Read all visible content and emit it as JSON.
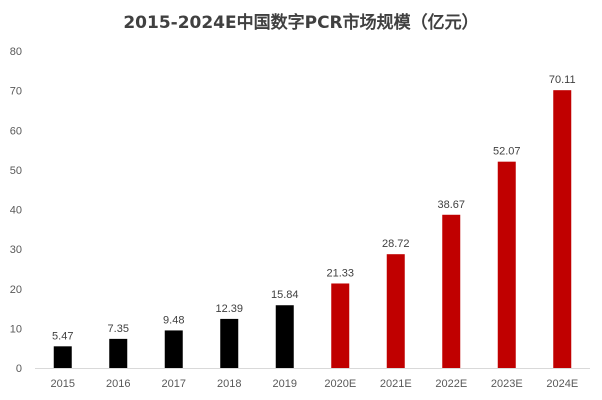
{
  "chart_data": {
    "type": "bar",
    "title": "2015-2024E中国数字PCR市场规模（亿元）",
    "categories": [
      "2015",
      "2016",
      "2017",
      "2018",
      "2019",
      "2020E",
      "2021E",
      "2022E",
      "2023E",
      "2024E"
    ],
    "values": [
      5.47,
      7.35,
      9.48,
      12.39,
      15.84,
      21.33,
      28.72,
      38.67,
      52.07,
      70.11
    ],
    "data_labels": [
      "5.47",
      "7.35",
      "9.48",
      "12.39",
      "15.84",
      "21.33",
      "28.72",
      "38.67",
      "52.07",
      "70.11"
    ],
    "bar_colors": [
      "#000000",
      "#000000",
      "#000000",
      "#000000",
      "#000000",
      "#c00000",
      "#c00000",
      "#c00000",
      "#c00000",
      "#c00000"
    ],
    "ylim": [
      0,
      80
    ],
    "yticks": [
      "0",
      "10",
      "20",
      "30",
      "40",
      "50",
      "60",
      "70",
      "80"
    ],
    "xlabel": "",
    "ylabel": "",
    "grid": false,
    "legend": "none"
  }
}
